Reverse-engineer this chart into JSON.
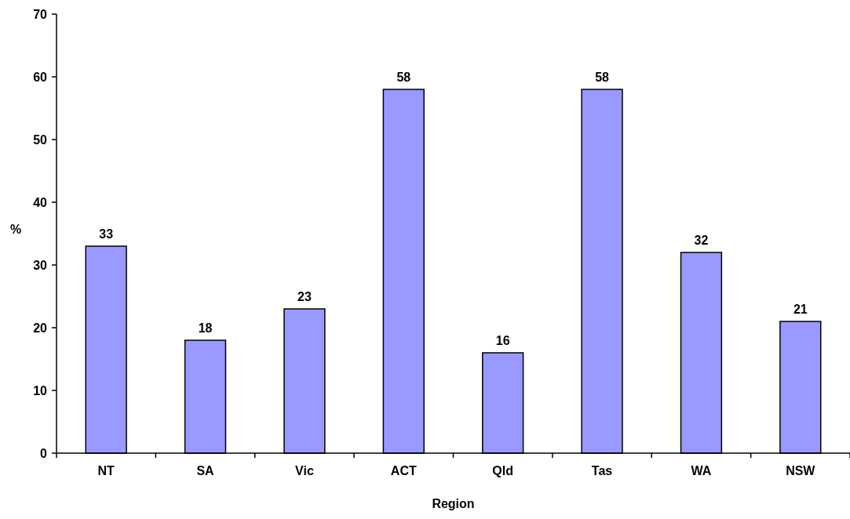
{
  "chart_data": {
    "type": "bar",
    "xlabel": "Region",
    "ylabel": "%",
    "categories": [
      "NT",
      "SA",
      "Vic",
      "ACT",
      "Qld",
      "Tas",
      "WA",
      "NSW"
    ],
    "values": [
      33,
      18,
      23,
      58,
      16,
      58,
      32,
      21
    ],
    "color": "#9999ff",
    "ylim": [
      0,
      70
    ],
    "yticks": [
      0,
      10,
      20,
      30,
      40,
      50,
      60,
      70
    ],
    "grid": false,
    "data_labels": true
  }
}
